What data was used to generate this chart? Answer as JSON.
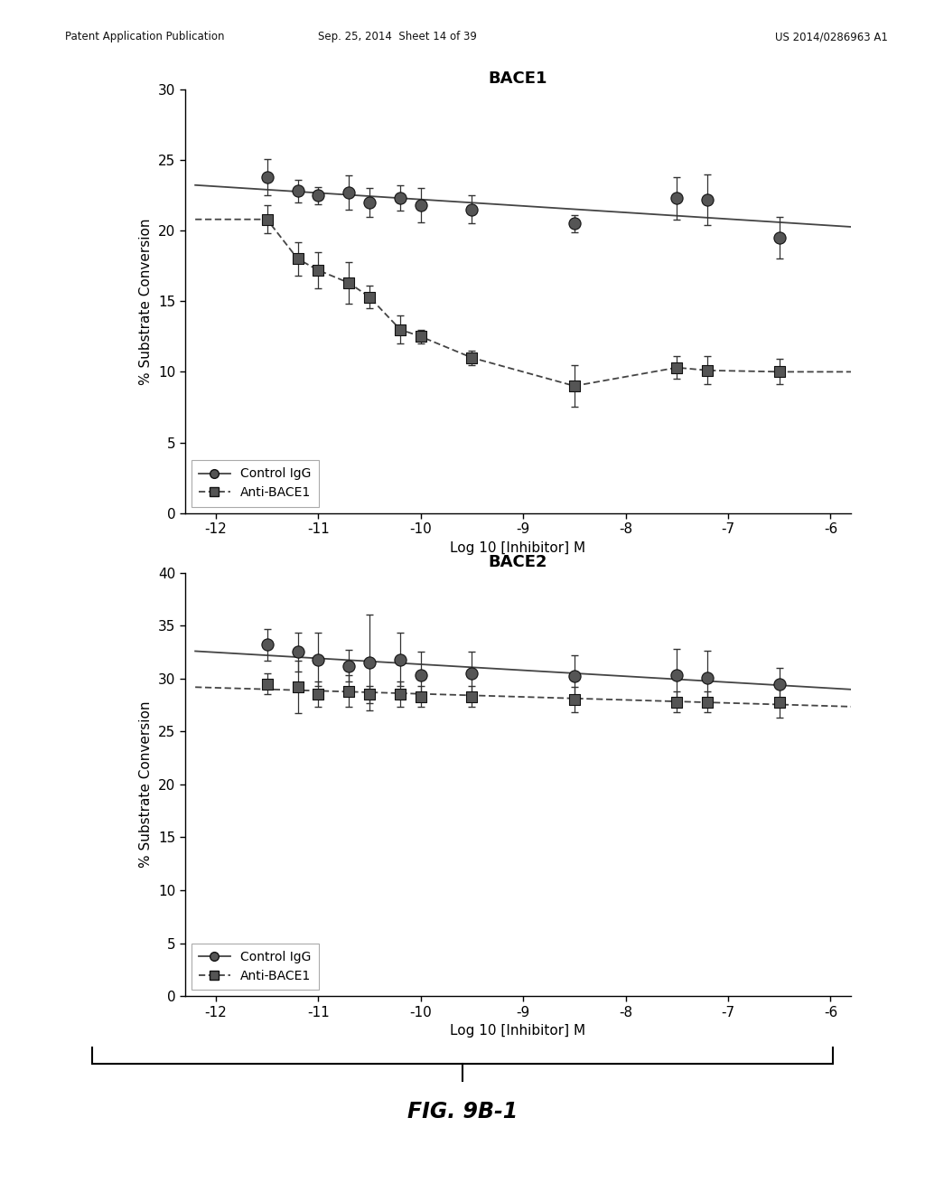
{
  "bace1_title": "BACE1",
  "bace2_title": "BACE2",
  "xlabel": "Log 10 [Inhibitor] M",
  "ylabel": "% Substrate Conversion",
  "x_ticks": [
    -12,
    -11,
    -10,
    -9,
    -8,
    -7,
    -6
  ],
  "x_tick_labels": [
    "-12",
    "-11",
    "-10",
    "-9",
    "-8",
    "-7",
    "-6"
  ],
  "bace1_igg_x": [
    -11.5,
    -11.2,
    -11.0,
    -10.7,
    -10.5,
    -10.2,
    -10.0,
    -9.5,
    -8.5,
    -7.5,
    -7.2,
    -6.5
  ],
  "bace1_igg_y": [
    23.8,
    22.8,
    22.5,
    22.7,
    22.0,
    22.3,
    21.8,
    21.5,
    20.5,
    22.3,
    22.2,
    19.5
  ],
  "bace1_igg_yerr": [
    1.3,
    0.8,
    0.6,
    1.2,
    1.0,
    0.9,
    1.2,
    1.0,
    0.6,
    1.5,
    1.8,
    1.5
  ],
  "bace1_anti_x": [
    -11.5,
    -11.2,
    -11.0,
    -10.7,
    -10.5,
    -10.2,
    -10.0,
    -9.5,
    -8.5,
    -7.5,
    -7.2,
    -6.5
  ],
  "bace1_anti_y": [
    20.8,
    18.0,
    17.2,
    16.3,
    15.3,
    13.0,
    12.5,
    11.0,
    9.0,
    10.3,
    10.1,
    10.0
  ],
  "bace1_anti_yerr": [
    1.0,
    1.2,
    1.3,
    1.5,
    0.8,
    1.0,
    0.5,
    0.5,
    1.5,
    0.8,
    1.0,
    0.9
  ],
  "bace2_igg_x": [
    -11.5,
    -11.2,
    -11.0,
    -10.7,
    -10.5,
    -10.2,
    -10.0,
    -9.5,
    -8.5,
    -7.5,
    -7.2,
    -6.5
  ],
  "bace2_igg_y": [
    33.2,
    32.5,
    31.8,
    31.2,
    31.5,
    31.8,
    30.3,
    30.5,
    30.2,
    30.3,
    30.1,
    29.5
  ],
  "bace2_igg_yerr": [
    1.5,
    1.8,
    2.5,
    1.5,
    4.5,
    2.5,
    2.2,
    2.0,
    2.0,
    2.5,
    2.5,
    1.5
  ],
  "bace2_anti_x": [
    -11.5,
    -11.2,
    -11.0,
    -10.7,
    -10.5,
    -10.2,
    -10.0,
    -9.5,
    -8.5,
    -7.5,
    -7.2,
    -6.5
  ],
  "bace2_anti_y": [
    29.5,
    29.2,
    28.5,
    28.8,
    28.5,
    28.5,
    28.3,
    28.3,
    28.0,
    27.8,
    27.8,
    27.8
  ],
  "bace2_anti_yerr": [
    1.0,
    2.5,
    1.2,
    1.5,
    0.8,
    1.2,
    1.0,
    1.0,
    1.2,
    1.0,
    1.0,
    1.5
  ],
  "fig_label": "FIG. 9B-1",
  "header_left": "Patent Application Publication",
  "header_mid": "Sep. 25, 2014  Sheet 14 of 39",
  "header_right": "US 2014/0286963 A1",
  "bace1_ylim": [
    0,
    30
  ],
  "bace1_yticks": [
    0,
    5,
    10,
    15,
    20,
    25,
    30
  ],
  "bace2_ylim": [
    0,
    40
  ],
  "bace2_yticks": [
    0,
    5,
    10,
    15,
    20,
    25,
    30,
    35,
    40
  ],
  "bg_color": "#ffffff",
  "line_color": "#333333",
  "marker_color": "#333333"
}
